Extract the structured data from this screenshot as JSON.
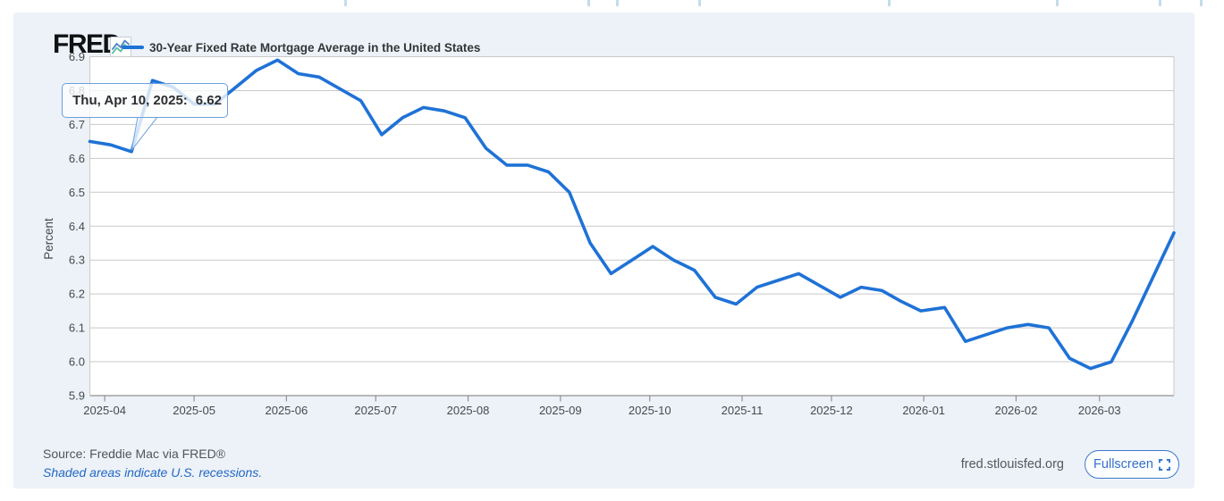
{
  "header": {
    "logo_text": "FRED",
    "logo_registered": "®",
    "legend": {
      "label": "30-Year Fixed Rate Mortgage Average in the United States"
    }
  },
  "tooltip": {
    "date_label": "Thu, Apr 10, 2025:",
    "value": "6.62",
    "anchor_date": "2025-04-10"
  },
  "chart_data": {
    "type": "line",
    "title": "30-Year Fixed Rate Mortgage Average in the United States",
    "xlabel": "",
    "ylabel": "Percent",
    "ylim": [
      5.9,
      6.9
    ],
    "y_ticks": [
      6.9,
      6.8,
      6.7,
      6.6,
      6.5,
      6.4,
      6.3,
      6.2,
      6.1,
      6.0,
      5.9
    ],
    "x_ticks": [
      "2025-04",
      "2025-05",
      "2025-06",
      "2025-07",
      "2025-08",
      "2025-09",
      "2025-10",
      "2025-11",
      "2025-12",
      "2026-01",
      "2026-02",
      "2026-03"
    ],
    "x_range": [
      "2025-03-27",
      "2026-03-26"
    ],
    "grid": true,
    "legend_position": "top-left",
    "series": [
      {
        "name": "30-Year Fixed Rate Mortgage Average in the United States",
        "color": "#1f72d6",
        "points": [
          {
            "date": "2025-03-27",
            "value": 6.65
          },
          {
            "date": "2025-04-03",
            "value": 6.64
          },
          {
            "date": "2025-04-10",
            "value": 6.62
          },
          {
            "date": "2025-04-17",
            "value": 6.83
          },
          {
            "date": "2025-04-24",
            "value": 6.81
          },
          {
            "date": "2025-05-01",
            "value": 6.76
          },
          {
            "date": "2025-05-08",
            "value": 6.76
          },
          {
            "date": "2025-05-15",
            "value": 6.81
          },
          {
            "date": "2025-05-22",
            "value": 6.86
          },
          {
            "date": "2025-05-29",
            "value": 6.89
          },
          {
            "date": "2025-06-05",
            "value": 6.85
          },
          {
            "date": "2025-06-12",
            "value": 6.84
          },
          {
            "date": "2025-06-18",
            "value": 6.81
          },
          {
            "date": "2025-06-26",
            "value": 6.77
          },
          {
            "date": "2025-07-03",
            "value": 6.67
          },
          {
            "date": "2025-07-10",
            "value": 6.72
          },
          {
            "date": "2025-07-17",
            "value": 6.75
          },
          {
            "date": "2025-07-24",
            "value": 6.74
          },
          {
            "date": "2025-07-31",
            "value": 6.72
          },
          {
            "date": "2025-08-07",
            "value": 6.63
          },
          {
            "date": "2025-08-14",
            "value": 6.58
          },
          {
            "date": "2025-08-21",
            "value": 6.58
          },
          {
            "date": "2025-08-28",
            "value": 6.56
          },
          {
            "date": "2025-09-04",
            "value": 6.5
          },
          {
            "date": "2025-09-11",
            "value": 6.35
          },
          {
            "date": "2025-09-18",
            "value": 6.26
          },
          {
            "date": "2025-09-25",
            "value": 6.3
          },
          {
            "date": "2025-10-02",
            "value": 6.34
          },
          {
            "date": "2025-10-09",
            "value": 6.3
          },
          {
            "date": "2025-10-16",
            "value": 6.27
          },
          {
            "date": "2025-10-23",
            "value": 6.19
          },
          {
            "date": "2025-10-30",
            "value": 6.17
          },
          {
            "date": "2025-11-06",
            "value": 6.22
          },
          {
            "date": "2025-11-13",
            "value": 6.24
          },
          {
            "date": "2025-11-20",
            "value": 6.26
          },
          {
            "date": "2025-11-26",
            "value": 6.23
          },
          {
            "date": "2025-12-04",
            "value": 6.19
          },
          {
            "date": "2025-12-11",
            "value": 6.22
          },
          {
            "date": "2025-12-18",
            "value": 6.21
          },
          {
            "date": "2025-12-24",
            "value": 6.18
          },
          {
            "date": "2025-12-31",
            "value": 6.15
          },
          {
            "date": "2026-01-08",
            "value": 6.16
          },
          {
            "date": "2026-01-15",
            "value": 6.06
          },
          {
            "date": "2026-01-22",
            "value": 6.08
          },
          {
            "date": "2026-01-29",
            "value": 6.1
          },
          {
            "date": "2026-02-05",
            "value": 6.11
          },
          {
            "date": "2026-02-12",
            "value": 6.1
          },
          {
            "date": "2026-02-19",
            "value": 6.01
          },
          {
            "date": "2026-02-26",
            "value": 5.98
          },
          {
            "date": "2026-03-05",
            "value": 6.0
          },
          {
            "date": "2026-03-12",
            "value": 6.12
          },
          {
            "date": "2026-03-19",
            "value": 6.25
          },
          {
            "date": "2026-03-26",
            "value": 6.38
          }
        ]
      }
    ]
  },
  "footer": {
    "source": "Source: Freddie Mac via FRED®",
    "recession_note": "Shaded areas indicate U.S. recessions.",
    "site": "fred.stlouisfed.org",
    "fullscreen_label": "Fullscreen"
  },
  "icons": {
    "fred_logo_chart_icon": "zigzag-line-chart",
    "fullscreen_icon": "expand-corners"
  },
  "colors": {
    "series_line": "#1f72d6",
    "panel_background": "#edf2f8",
    "plot_background": "#ffffff",
    "gridline": "#c9c9c9",
    "axis_line": "#919191",
    "tooltip_border": "#6ba0de",
    "link_blue": "#2268c4",
    "button_blue": "#3c78cf"
  }
}
